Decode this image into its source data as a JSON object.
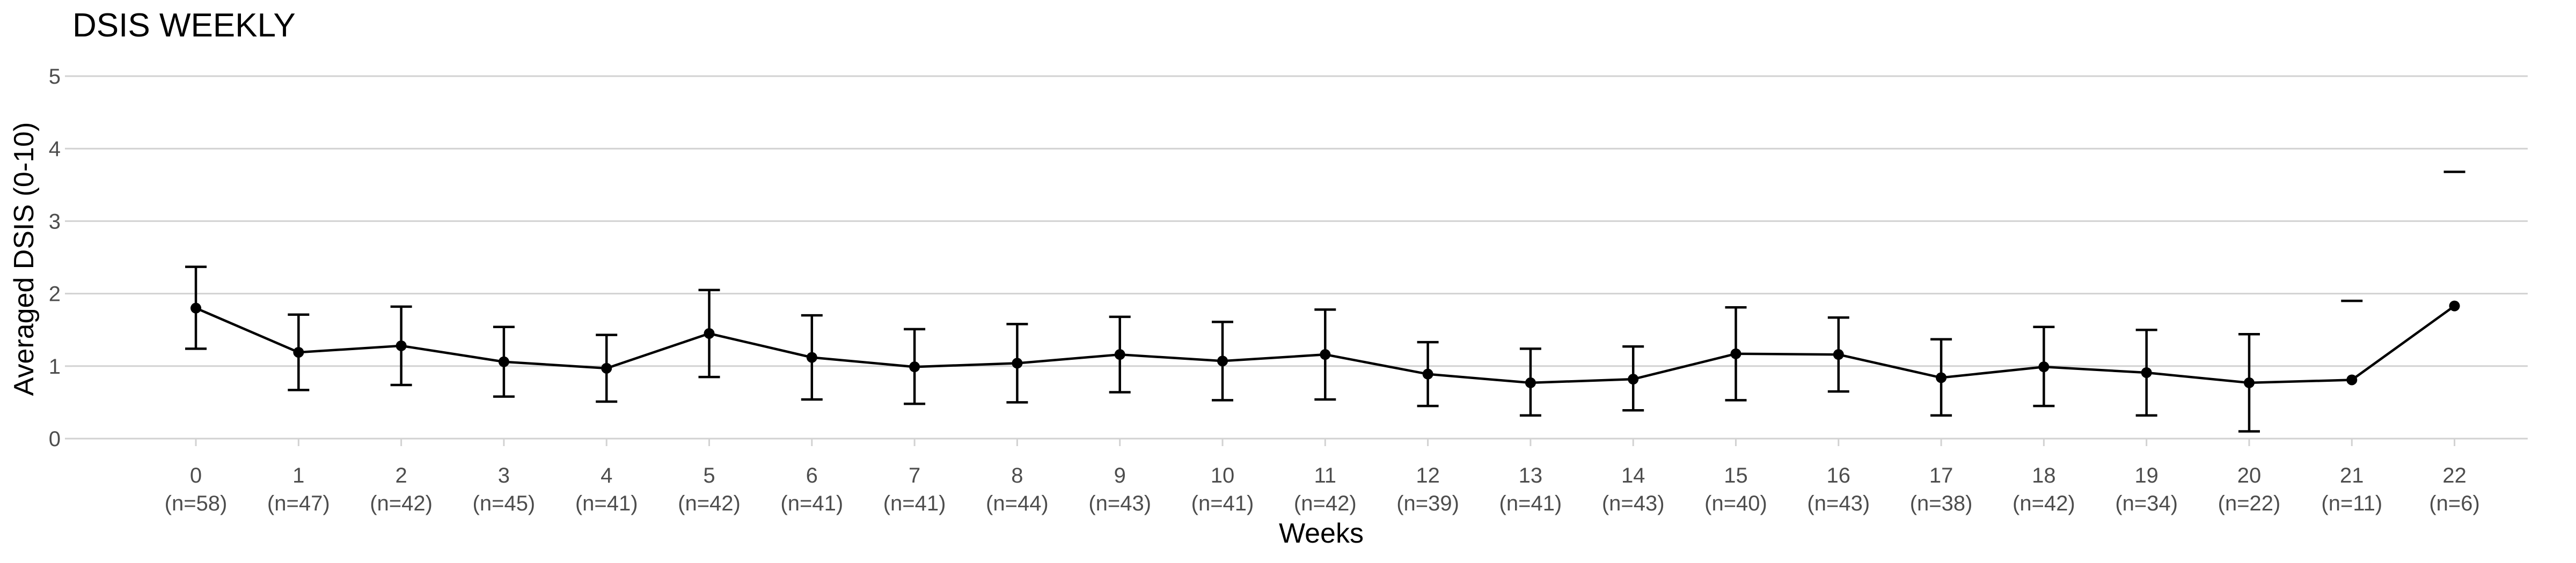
{
  "chart_data": {
    "type": "line",
    "title": "DSIS WEEKLY",
    "xlabel": "Weeks",
    "ylabel": "Averaged DSIS (0-10)",
    "ylim": [
      0,
      5
    ],
    "yticks": [
      0,
      1,
      2,
      3,
      4,
      5
    ],
    "grid": true,
    "legend": "none",
    "categories": [
      "0",
      "1",
      "2",
      "3",
      "4",
      "5",
      "6",
      "7",
      "8",
      "9",
      "10",
      "11",
      "12",
      "13",
      "14",
      "15",
      "16",
      "17",
      "18",
      "19",
      "20",
      "21",
      "22"
    ],
    "n_labels": [
      "(n=58)",
      "(n=47)",
      "(n=42)",
      "(n=45)",
      "(n=41)",
      "(n=42)",
      "(n=41)",
      "(n=41)",
      "(n=44)",
      "(n=43)",
      "(n=41)",
      "(n=42)",
      "(n=39)",
      "(n=41)",
      "(n=43)",
      "(n=40)",
      "(n=43)",
      "(n=38)",
      "(n=42)",
      "(n=34)",
      "(n=22)",
      "(n=11)",
      "(n=6)"
    ],
    "values": [
      1.8,
      1.19,
      1.28,
      1.06,
      0.97,
      1.45,
      1.12,
      0.99,
      1.04,
      1.16,
      1.07,
      1.16,
      0.89,
      0.77,
      0.82,
      1.17,
      1.16,
      0.84,
      0.99,
      0.91,
      0.77,
      0.81,
      1.83
    ],
    "upper": [
      2.37,
      1.71,
      1.82,
      1.54,
      1.43,
      2.05,
      1.7,
      1.51,
      1.58,
      1.68,
      1.61,
      1.78,
      1.33,
      1.24,
      1.27,
      1.81,
      1.67,
      1.37,
      1.54,
      1.5,
      1.44,
      1.9,
      3.68
    ],
    "lower": [
      1.24,
      0.67,
      0.74,
      0.58,
      0.51,
      0.85,
      0.54,
      0.48,
      0.5,
      0.64,
      0.53,
      0.54,
      0.45,
      0.32,
      0.39,
      0.53,
      0.65,
      0.32,
      0.45,
      0.32,
      0.1,
      null,
      null
    ]
  }
}
